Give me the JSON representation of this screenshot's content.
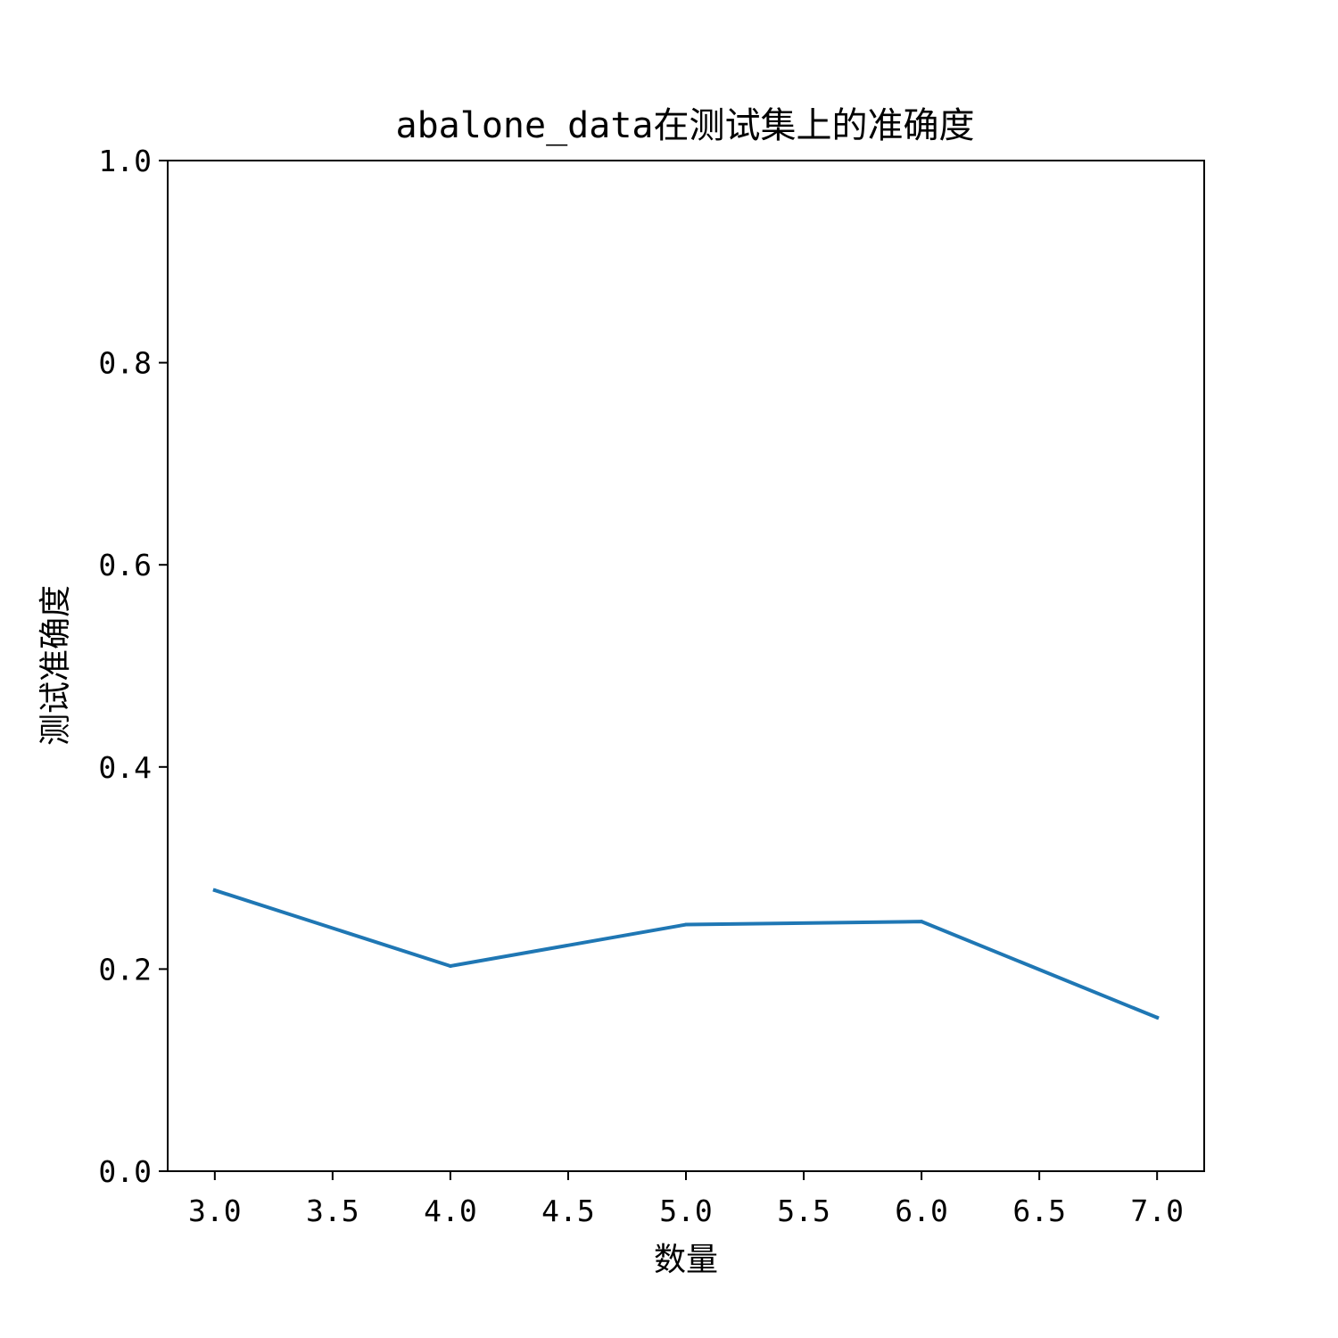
{
  "chart_data": {
    "type": "line",
    "title": "abalone_data在测试集上的准确度",
    "xlabel": "数量",
    "ylabel": "测试准确度",
    "xlim": [
      2.8,
      7.2
    ],
    "ylim": [
      0.0,
      1.0
    ],
    "xticks": [
      3.0,
      3.5,
      4.0,
      4.5,
      5.0,
      5.5,
      6.0,
      6.5,
      7.0
    ],
    "xtick_labels": [
      "3.0",
      "3.5",
      "4.0",
      "4.5",
      "5.0",
      "5.5",
      "6.0",
      "6.5",
      "7.0"
    ],
    "yticks": [
      0.0,
      0.2,
      0.4,
      0.6,
      0.8,
      1.0
    ],
    "ytick_labels": [
      "0.0",
      "0.2",
      "0.4",
      "0.6",
      "0.8",
      "1.0"
    ],
    "grid": false,
    "series": [
      {
        "color": "#1f77b4",
        "x": [
          3,
          4,
          5,
          6,
          7
        ],
        "y": [
          0.278,
          0.203,
          0.244,
          0.247,
          0.152
        ]
      }
    ]
  }
}
